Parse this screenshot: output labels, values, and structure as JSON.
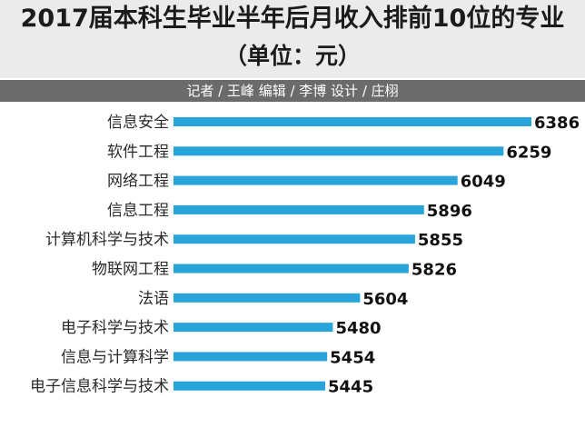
{
  "header": {
    "title": "2017届本科生毕业半年后月收入排前10位的专业",
    "subtitle": "（单位：元）",
    "credits": "记者 / 王峰    编辑 / 李博    设计 / 庄栩"
  },
  "colors": {
    "bar": "#29a4da",
    "header_bg": "#ebebeb",
    "credit_bg": "#6b6b6b"
  },
  "chart_data": {
    "type": "bar",
    "orientation": "horizontal",
    "title": "2017届本科生毕业半年后月收入排前10位的专业",
    "subtitle": "（单位：元）",
    "xlabel": "",
    "ylabel": "",
    "grid": false,
    "legend": "none",
    "categories": [
      "信息安全",
      "软件工程",
      "网络工程",
      "信息工程",
      "计算机科学与技术",
      "物联网工程",
      "法语",
      "电子科学与技术",
      "信息与计算科学",
      "电子信息科学与技术"
    ],
    "values": [
      6386,
      6259,
      6049,
      5896,
      5855,
      5826,
      5604,
      5480,
      5454,
      5445
    ],
    "value_labels": [
      "6386",
      "6259",
      "6049",
      "5896",
      "5855",
      "5826",
      "5604",
      "5480",
      "5454",
      "5445"
    ]
  }
}
